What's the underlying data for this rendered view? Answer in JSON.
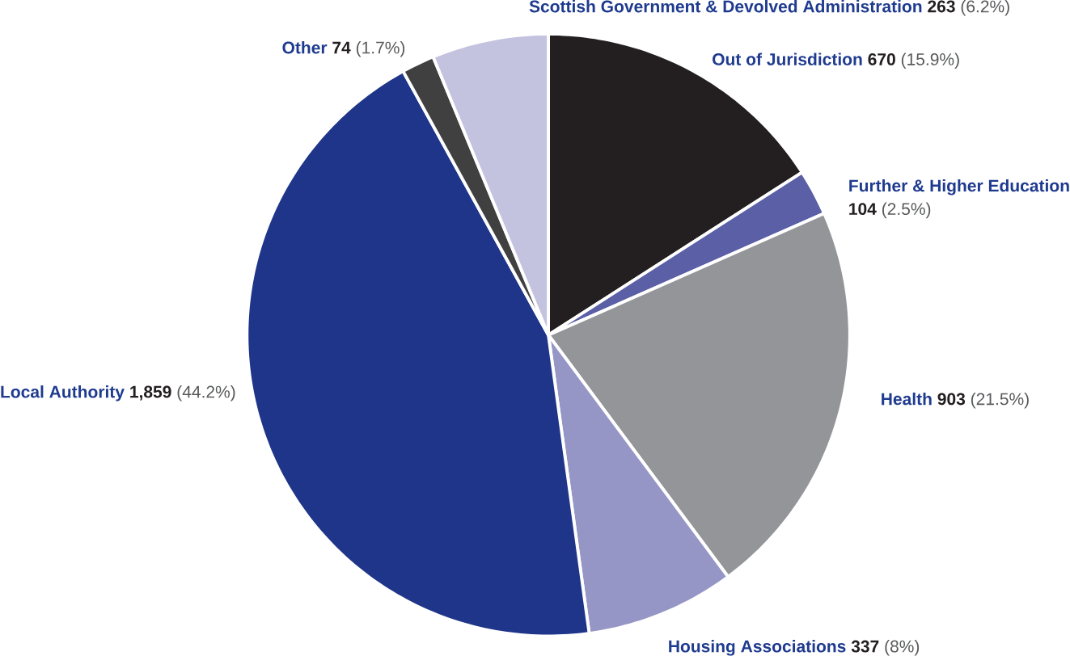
{
  "chart_data": {
    "type": "pie",
    "categories": [
      "Out of Jurisdiction",
      "Further & Higher Education",
      "Health",
      "Housing Associations",
      "Local Authority",
      "Other",
      "Scottish Government & Devolved Administration"
    ],
    "values": [
      670,
      104,
      903,
      337,
      1859,
      74,
      263
    ],
    "value_labels": [
      "**670** (15.9%)",
      "**104** (2.5%)",
      "**903** (21.5%)",
      "**337** (8%)",
      "**1,859** (44.2%)",
      "**74** (1.7%)",
      "**263** (6.2%)"
    ],
    "colors": [
      "#231f20",
      "#5a5fa6",
      "#939598",
      "#9596c6",
      "#1f3589",
      "#404041",
      "#c3c3e0"
    ]
  }
}
